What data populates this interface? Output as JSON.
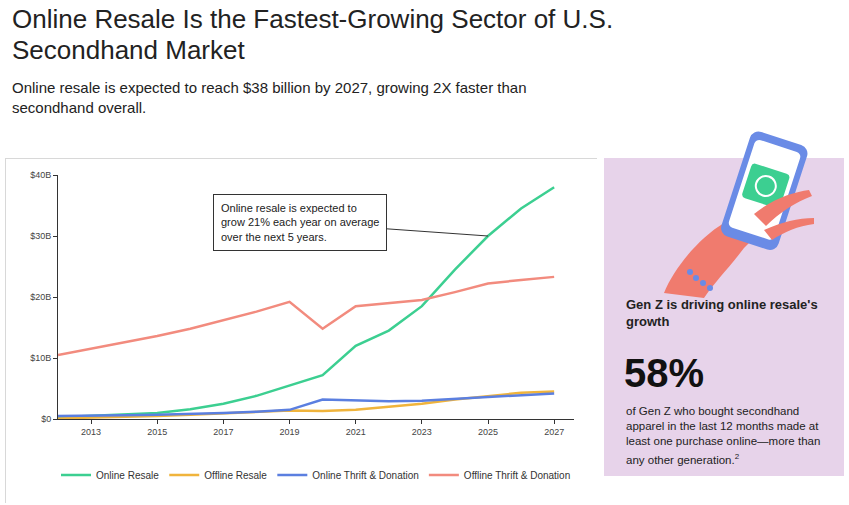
{
  "chart_data": {
    "type": "line",
    "title": "Online Resale Is the Fastest-Growing Sector of U.S. Secondhand Market",
    "subtitle": "Online resale is expected to reach $38 billion by 2027, growing 2X faster than secondhand overall.",
    "x": [
      2012,
      2013,
      2014,
      2015,
      2016,
      2017,
      2018,
      2019,
      2020,
      2021,
      2022,
      2023,
      2024,
      2025,
      2026,
      2027
    ],
    "xlim": [
      2012,
      2027.6
    ],
    "xticks": [
      2013,
      2015,
      2017,
      2019,
      2021,
      2023,
      2025,
      2027
    ],
    "ylim": [
      0,
      40
    ],
    "yticks": [
      {
        "value": 0,
        "label": "$0"
      },
      {
        "value": 10,
        "label": "$10B"
      },
      {
        "value": 20,
        "label": "$20B"
      },
      {
        "value": 30,
        "label": "$30B"
      },
      {
        "value": 40,
        "label": "$40B"
      }
    ],
    "grid": false,
    "legend": "bottom",
    "series": [
      {
        "name": "Online Resale",
        "color": "#3ccf91",
        "values": [
          0.3,
          0.5,
          0.7,
          1.0,
          1.6,
          2.5,
          3.8,
          5.5,
          7.2,
          12.0,
          14.5,
          18.5,
          24.5,
          30.0,
          34.5,
          38.0
        ]
      },
      {
        "name": "Offline Resale",
        "color": "#f0b43c",
        "values": [
          0.1,
          0.2,
          0.3,
          0.5,
          0.7,
          0.9,
          1.1,
          1.4,
          1.3,
          1.5,
          2.0,
          2.5,
          3.2,
          3.8,
          4.3,
          4.5
        ]
      },
      {
        "name": "Online Thrift & Donation",
        "color": "#5b7fe0",
        "values": [
          0.5,
          0.5,
          0.6,
          0.7,
          0.8,
          1.0,
          1.2,
          1.5,
          3.2,
          3.0,
          2.9,
          3.0,
          3.3,
          3.7,
          4.0,
          4.2
        ]
      },
      {
        "name": "Offline Thrift & Donation",
        "color": "#f28b7e",
        "values": [
          10.5,
          11.5,
          12.5,
          13.6,
          14.8,
          16.2,
          17.6,
          19.2,
          14.8,
          18.5,
          19.0,
          19.5,
          20.8,
          22.2,
          22.8,
          23.3
        ]
      }
    ],
    "annotations": [
      {
        "text": "Online resale is expected to grow 21% each year on average over the next 5 years.",
        "x": 2025,
        "y": 30
      }
    ]
  },
  "panel": {
    "heading": "Gen Z is driving online resale's growth",
    "stat": "58%",
    "text": "of Gen Z who bought secondhand apparel in the last 12 months made at least one purchase online—more than any other generation.",
    "footnote": "2"
  }
}
